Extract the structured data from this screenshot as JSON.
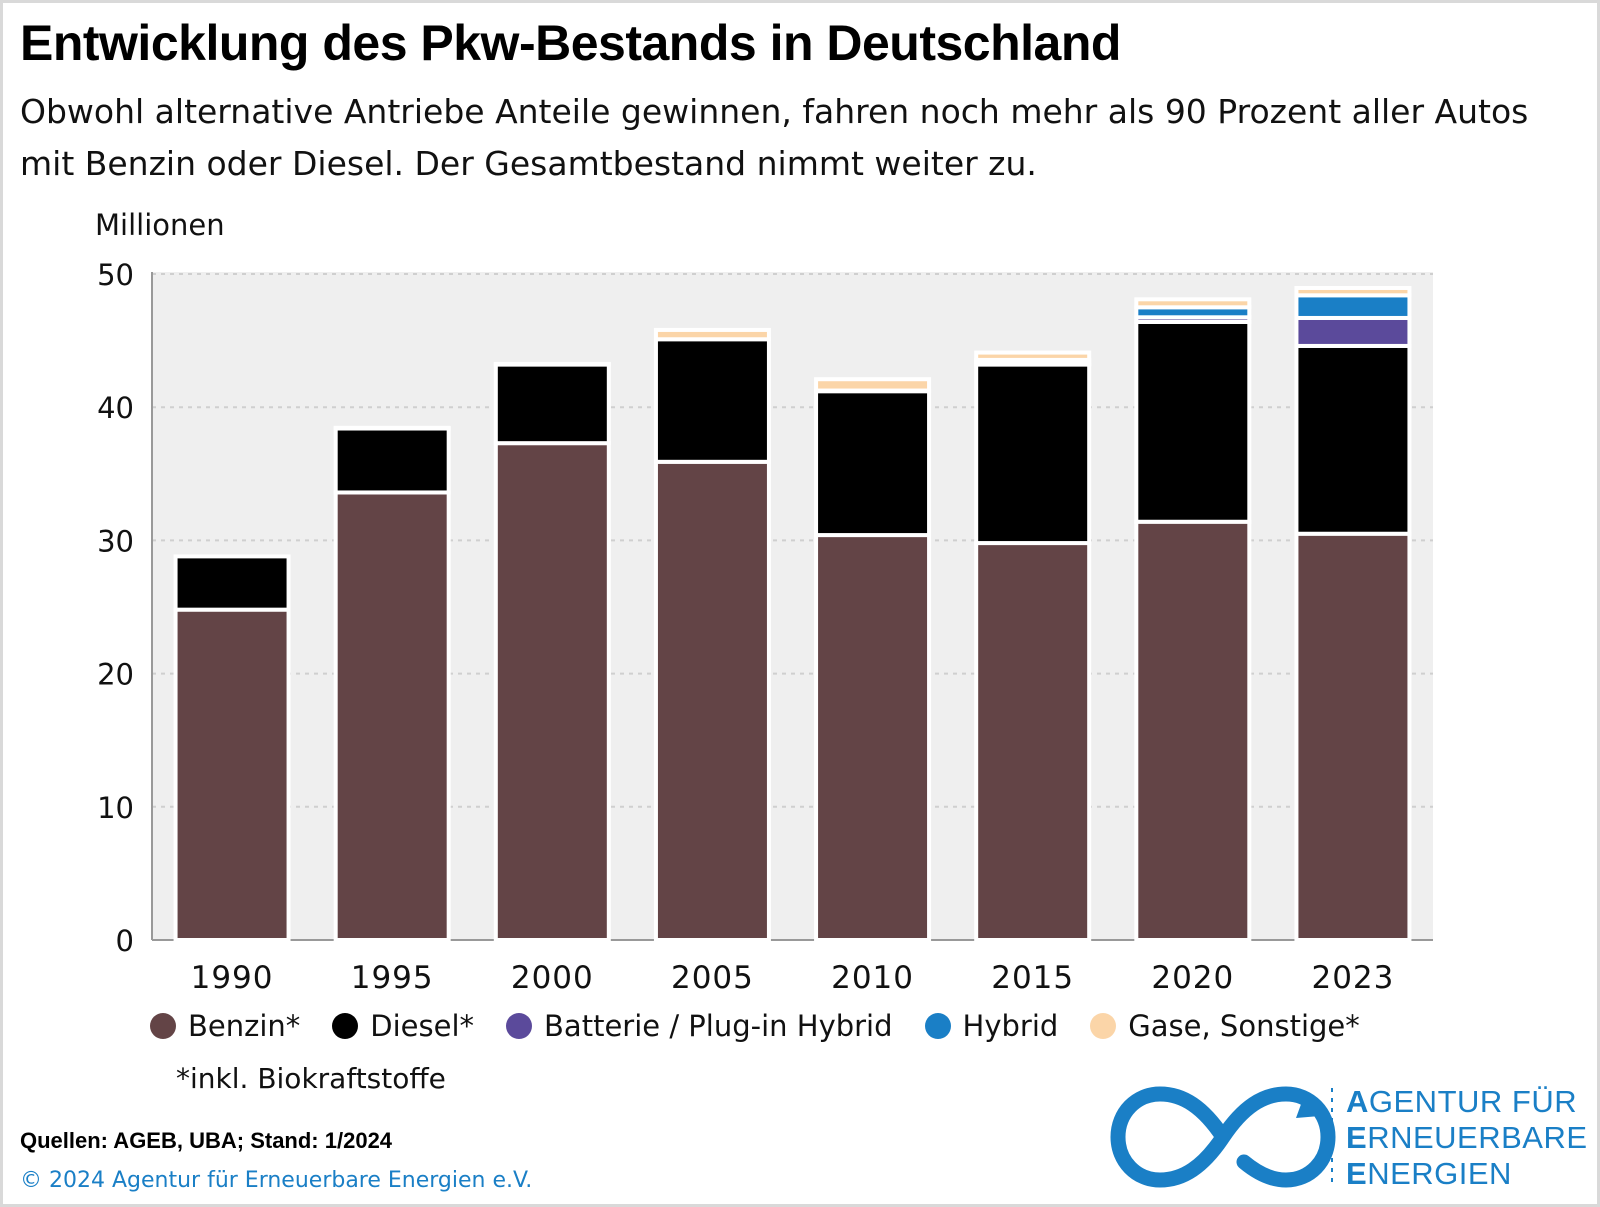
{
  "title": "Entwicklung des Pkw-Bestands in Deutschland",
  "subtitle": "Obwohl alternative Antriebe Anteile gewinnen, fahren noch mehr als 90 Prozent aller Autos mit Benzin oder Diesel. Der Gesamtbestand nimmt weiter zu.",
  "chart_data": {
    "type": "bar",
    "stacked": true,
    "ylabel": "Millionen",
    "ylim": [
      0,
      50
    ],
    "yticks": [
      "0",
      "10",
      "20",
      "30",
      "40",
      "50"
    ],
    "grid": true,
    "categories": [
      "1990",
      "1995",
      "2000",
      "2005",
      "2010",
      "2015",
      "2020",
      "2023"
    ],
    "series": [
      {
        "name": "Benzin*",
        "color": "#634446",
        "values": [
          24.8,
          33.6,
          37.3,
          35.9,
          30.4,
          29.8,
          31.4,
          30.5
        ]
      },
      {
        "name": "Diesel*",
        "color": "#000000",
        "values": [
          4.0,
          4.8,
          5.9,
          9.2,
          10.8,
          13.4,
          15.0,
          14.1
        ]
      },
      {
        "name": "Batterie / Plug-in Hybrid",
        "color": "#5b4a9b",
        "values": [
          0.0,
          0.0,
          0.0,
          0.0,
          0.0,
          0.05,
          0.35,
          2.1
        ]
      },
      {
        "name": "Hybrid",
        "color": "#1a7fc6",
        "values": [
          0.0,
          0.0,
          0.0,
          0.0,
          0.05,
          0.3,
          0.75,
          1.7
        ]
      },
      {
        "name": "Gase, Sonstige*",
        "color": "#fbd5a8",
        "values": [
          0.0,
          0.05,
          0.05,
          0.7,
          0.85,
          0.55,
          0.6,
          0.55
        ]
      }
    ],
    "legend_position": "bottom"
  },
  "footnote": "*inkl. Biokraftstoffe",
  "sources": "Quellen: AGEB, UBA; Stand: 1/2024",
  "copyright": "© 2024 Agentur für Erneuerbare Energien e.V.",
  "logo": {
    "line1_initial": "A",
    "line1_rest": "GENTUR FÜR",
    "line2_initial": "E",
    "line2_rest": "RNEUERBARE",
    "line3_initial": "E",
    "line3_rest": "NERGIEN",
    "color": "#1a7fc6",
    "icon": "infinity-logo-icon"
  }
}
